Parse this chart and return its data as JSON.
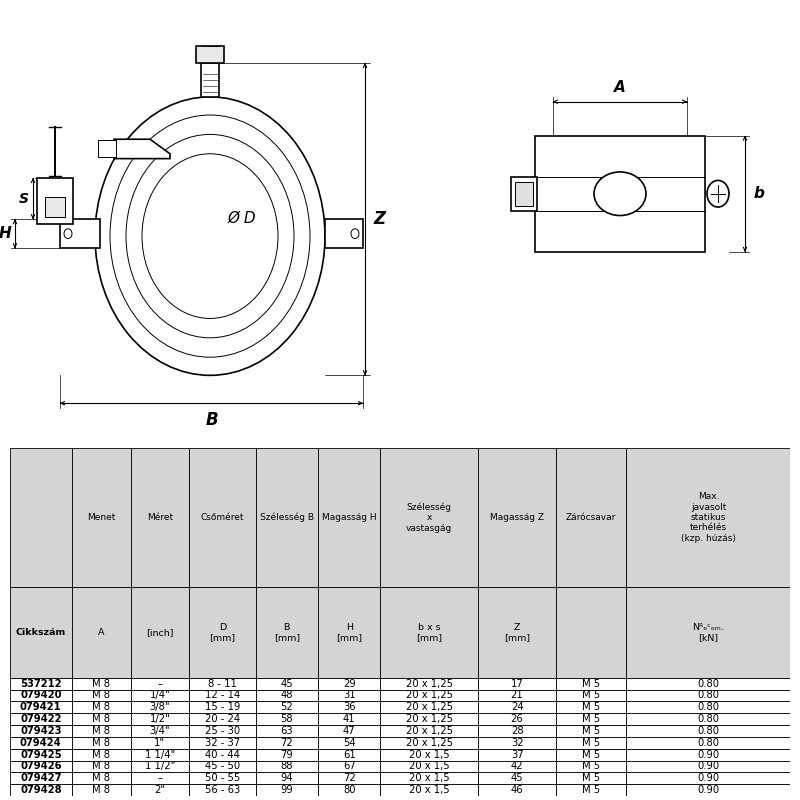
{
  "col_lefts": [
    0.0,
    8.0,
    15.5,
    23.0,
    31.5,
    39.5,
    47.5,
    60.0,
    70.0,
    79.0
  ],
  "col_rights": [
    8.0,
    15.5,
    23.0,
    31.5,
    39.5,
    47.5,
    60.0,
    70.0,
    79.0,
    100.0
  ],
  "header1_texts": [
    "",
    "Menet",
    "Méret",
    "Csőméret",
    "Szélesség B",
    "Magasság H",
    "Szélesség\nx\nvastasgág",
    "Magasság Z",
    "Zárócsavar",
    "Max.\njavasolt\nstatikus\nterhélés\n(kzp. húzás)"
  ],
  "header2_texts": [
    "Cikkszám",
    "A",
    "[inch]",
    "D\n[mm]",
    "B\n[mm]",
    "H\n[mm]",
    "b x s\n[mm]",
    "Z\n[mm]",
    "",
    "Nᴿₑᶜₒₘ.\n[kN]"
  ],
  "rows": [
    [
      "537212",
      "M 8",
      "–",
      "8 - 11",
      "45",
      "29",
      "20 x 1,25",
      "17",
      "M 5",
      "0.80"
    ],
    [
      "079420",
      "M 8",
      "1/4\"",
      "12 - 14",
      "48",
      "31",
      "20 x 1,25",
      "21",
      "M 5",
      "0.80"
    ],
    [
      "079421",
      "M 8",
      "3/8\"",
      "15 - 19",
      "52",
      "36",
      "20 x 1,25",
      "24",
      "M 5",
      "0.80"
    ],
    [
      "079422",
      "M 8",
      "1/2\"",
      "20 - 24",
      "58",
      "41",
      "20 x 1,25",
      "26",
      "M 5",
      "0.80"
    ],
    [
      "079423",
      "M 8",
      "3/4\"",
      "25 - 30",
      "63",
      "47",
      "20 x 1,25",
      "28",
      "M 5",
      "0.80"
    ],
    [
      "079424",
      "M 8",
      "1\"",
      "32 - 37",
      "72",
      "54",
      "20 x 1,25",
      "32",
      "M 5",
      "0.80"
    ],
    [
      "079425",
      "M 8",
      "1 1/4\"",
      "40 - 44",
      "79",
      "61",
      "20 x 1,5",
      "37",
      "M 5",
      "0.90"
    ],
    [
      "079426",
      "M 8",
      "1 1/2\"",
      "45 - 50",
      "88",
      "67",
      "20 x 1,5",
      "42",
      "M 5",
      "0.90"
    ],
    [
      "079427",
      "M 8",
      "–",
      "50 - 55",
      "94",
      "72",
      "20 x 1,5",
      "45",
      "M 5",
      "0.90"
    ],
    [
      "079428",
      "M 8",
      "2\"",
      "56 - 63",
      "99",
      "80",
      "20 x 1,5",
      "46",
      "M 5",
      "0.90"
    ]
  ],
  "header_bg": "#d4d4d4",
  "white": "#ffffff",
  "black": "#000000"
}
